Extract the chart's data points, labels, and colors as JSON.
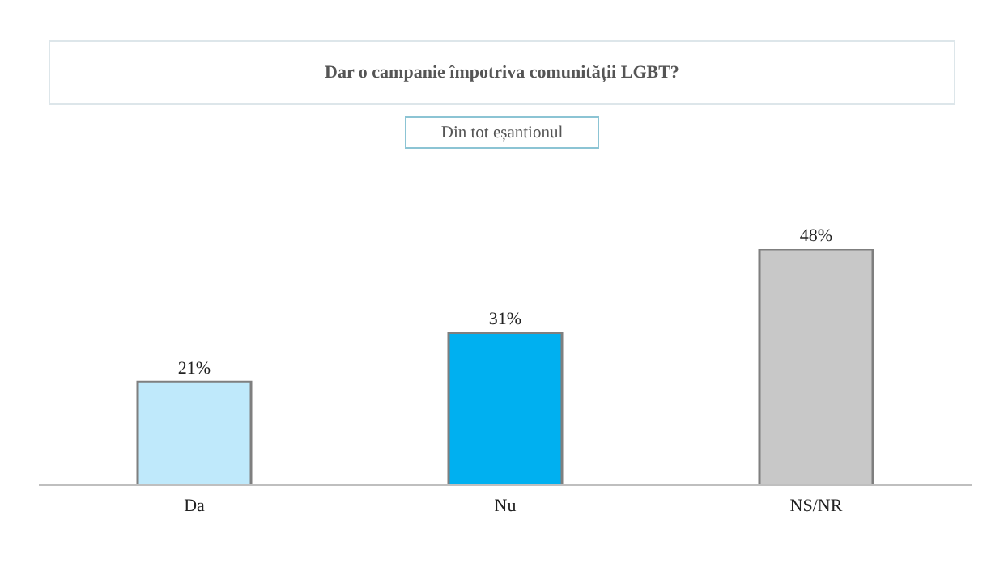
{
  "chart_data": {
    "type": "bar",
    "title": "Dar o campanie împotriva comunității LGBT?",
    "subtitle": "Din tot eșantionul",
    "categories": [
      "Da",
      "Nu",
      "NS/NR"
    ],
    "values": [
      21,
      31,
      48
    ],
    "value_labels": [
      "21%",
      "31%",
      "48%"
    ],
    "colors": [
      "#bfe9fb",
      "#00b0f0",
      "#c8c8c8"
    ],
    "grid": false,
    "legend": false
  }
}
